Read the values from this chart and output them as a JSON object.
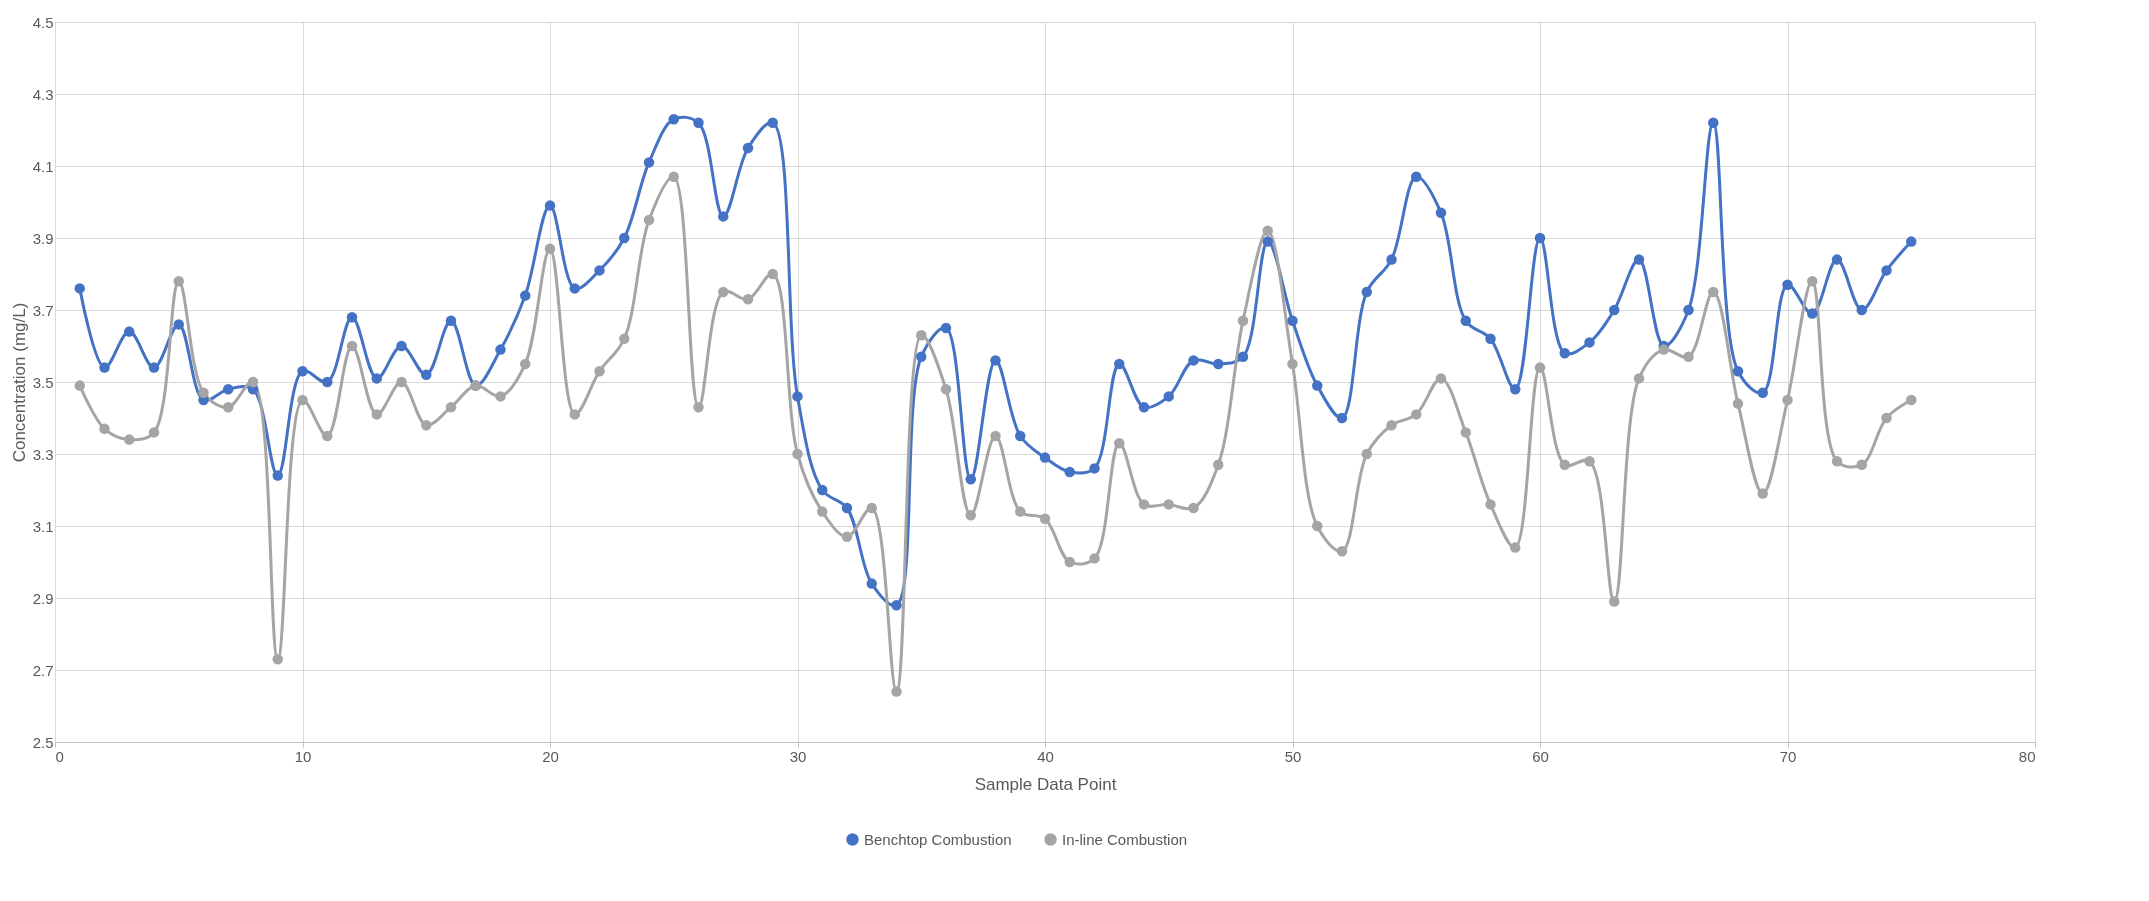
{
  "chart_data": {
    "type": "line",
    "xlabel": "Sample Data Point",
    "ylabel": "Concentration (mg/L)",
    "x": [
      1,
      2,
      3,
      4,
      5,
      6,
      7,
      8,
      9,
      10,
      11,
      12,
      13,
      14,
      15,
      16,
      17,
      18,
      19,
      20,
      21,
      22,
      23,
      24,
      25,
      26,
      27,
      28,
      29,
      30,
      31,
      32,
      33,
      34,
      35,
      36,
      37,
      38,
      39,
      40,
      41,
      42,
      43,
      44,
      45,
      46,
      47,
      48,
      49,
      50,
      51,
      52,
      53,
      54,
      55,
      56,
      57,
      58,
      59,
      60,
      61,
      62,
      63,
      64,
      65,
      66,
      67,
      68,
      69,
      70,
      71,
      72,
      73,
      74,
      75
    ],
    "series": [
      {
        "name": "Benchtop Combustion",
        "color": "#4472c4",
        "values": [
          3.76,
          3.54,
          3.64,
          3.54,
          3.66,
          3.45,
          3.48,
          3.48,
          3.24,
          3.53,
          3.5,
          3.68,
          3.51,
          3.6,
          3.52,
          3.67,
          3.49,
          3.59,
          3.74,
          3.99,
          3.76,
          3.81,
          3.9,
          4.11,
          4.23,
          4.22,
          3.96,
          4.15,
          4.22,
          3.46,
          3.2,
          3.15,
          2.94,
          2.88,
          3.57,
          3.65,
          3.23,
          3.56,
          3.35,
          3.29,
          3.25,
          3.26,
          3.55,
          3.43,
          3.46,
          3.56,
          3.55,
          3.57,
          3.89,
          3.67,
          3.49,
          3.4,
          3.75,
          3.84,
          4.07,
          3.97,
          3.67,
          3.62,
          3.48,
          3.9,
          3.58,
          3.61,
          3.7,
          3.84,
          3.6,
          3.7,
          4.22,
          3.53,
          3.47,
          3.77,
          3.69,
          3.84,
          3.7,
          3.81,
          3.89
        ]
      },
      {
        "name": "In-line Combustion",
        "color": "#a5a5a5",
        "values": [
          3.49,
          3.37,
          3.34,
          3.36,
          3.78,
          3.47,
          3.43,
          3.5,
          2.73,
          3.45,
          3.35,
          3.6,
          3.41,
          3.5,
          3.38,
          3.43,
          3.49,
          3.46,
          3.55,
          3.87,
          3.41,
          3.53,
          3.62,
          3.95,
          4.07,
          3.43,
          3.75,
          3.73,
          3.8,
          3.3,
          3.14,
          3.07,
          3.15,
          2.64,
          3.63,
          3.48,
          3.13,
          3.35,
          3.14,
          3.12,
          3.0,
          3.01,
          3.33,
          3.16,
          3.16,
          3.15,
          3.27,
          3.67,
          3.92,
          3.55,
          3.1,
          3.03,
          3.3,
          3.38,
          3.41,
          3.51,
          3.36,
          3.16,
          3.04,
          3.54,
          3.27,
          3.28,
          2.89,
          3.51,
          3.59,
          3.57,
          3.75,
          3.44,
          3.19,
          3.45,
          3.78,
          3.28,
          3.27,
          3.4,
          3.45
        ]
      }
    ],
    "xlim": [
      0,
      80
    ],
    "xticks": [
      0,
      10,
      20,
      30,
      40,
      50,
      60,
      70,
      80
    ],
    "ylim": [
      2.5,
      4.5
    ],
    "yticks": [
      2.5,
      2.7,
      2.9,
      3.1,
      3.3,
      3.5,
      3.7,
      3.9,
      4.1,
      4.3,
      4.5
    ],
    "grid": true,
    "legend": "bottom",
    "marker": "circle",
    "line_style": "solid"
  }
}
